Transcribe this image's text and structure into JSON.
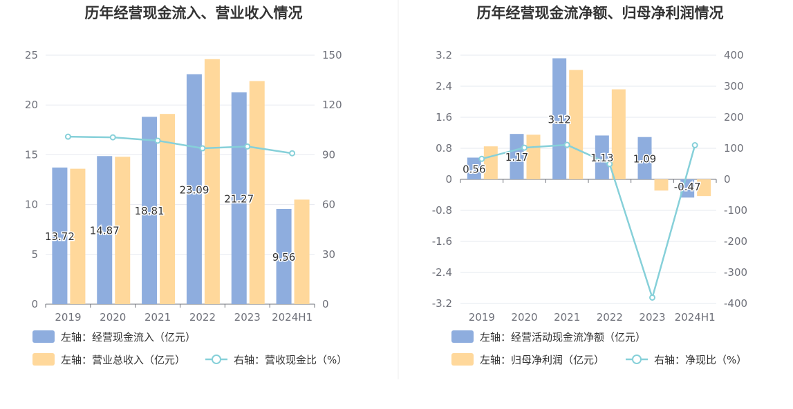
{
  "colors": {
    "blue": "#8eadde",
    "yellow": "#ffd89b",
    "teal": "#86d0d9",
    "grid": "#e6e8ef",
    "axis": "#6e7079",
    "title": "#333333"
  },
  "chart_data": [
    {
      "type": "bar",
      "title": "历年经营现金流入、营业收入情况",
      "categories": [
        "2019",
        "2020",
        "2021",
        "2022",
        "2023",
        "2024H1"
      ],
      "ylim_left": [
        0,
        25
      ],
      "left_ticks": [
        "0",
        "5",
        "10",
        "15",
        "20",
        "25"
      ],
      "ylim_right": [
        0,
        150
      ],
      "right_ticks": [
        "0",
        "30",
        "60",
        "90",
        "120",
        "150"
      ],
      "grid": true,
      "legend_position": "bottom-left",
      "series": [
        {
          "name": "左轴：经营现金流入（亿元）",
          "axis": "left",
          "kind": "bar",
          "color": "blue",
          "values": [
            13.72,
            14.87,
            18.81,
            23.09,
            21.27,
            9.56
          ],
          "labels": [
            "13.72",
            "14.87",
            "18.81",
            "23.09",
            "21.27",
            "9.56"
          ]
        },
        {
          "name": "左轴：营业总收入（亿元）",
          "axis": "left",
          "kind": "bar",
          "color": "yellow",
          "values": [
            13.6,
            14.8,
            19.1,
            24.6,
            22.4,
            10.5
          ]
        },
        {
          "name": "右轴：营收现金比（%）",
          "axis": "right",
          "kind": "line",
          "color": "teal",
          "values": [
            100.9,
            100.5,
            98.5,
            93.9,
            95.0,
            90.9
          ]
        }
      ]
    },
    {
      "type": "bar",
      "title": "历年经营现金流净额、归母净利润情况",
      "categories": [
        "2019",
        "2020",
        "2021",
        "2022",
        "2023",
        "2024H1"
      ],
      "ylim_left": [
        -3.2,
        3.2
      ],
      "left_ticks": [
        "-3.2",
        "-2.4",
        "-1.6",
        "-0.8",
        "0",
        "0.8",
        "1.6",
        "2.4",
        "3.2"
      ],
      "ylim_right": [
        -400,
        400
      ],
      "right_ticks": [
        "-400",
        "-300",
        "-200",
        "-100",
        "0",
        "100",
        "200",
        "300",
        "400"
      ],
      "grid": true,
      "legend_position": "bottom-left",
      "series": [
        {
          "name": "左轴：经营活动现金流净额（亿元）",
          "axis": "left",
          "kind": "bar",
          "color": "blue",
          "values": [
            0.56,
            1.17,
            3.12,
            1.13,
            1.09,
            -0.47
          ],
          "labels": [
            "0.56",
            "1.17",
            "3.12",
            "1.13",
            "1.09",
            "-0.47"
          ]
        },
        {
          "name": "左轴：归母净利润（亿元）",
          "axis": "left",
          "kind": "bar",
          "color": "yellow",
          "values": [
            0.85,
            1.15,
            2.82,
            2.32,
            -0.29,
            -0.43
          ]
        },
        {
          "name": "右轴：净现比（%）",
          "axis": "right",
          "kind": "line",
          "color": "teal",
          "values": [
            66,
            102,
            111,
            49,
            -381,
            110
          ]
        }
      ]
    }
  ]
}
